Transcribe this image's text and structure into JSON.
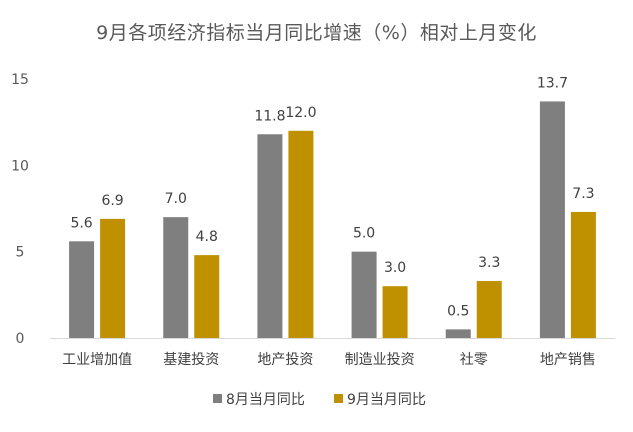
{
  "chart_data": {
    "type": "bar",
    "title": "9月各项经济指标当月同比增速（%）相对上月变化",
    "categories": [
      "工业增加值",
      "基建投资",
      "地产投资",
      "制造业投资",
      "社零",
      "地产销售"
    ],
    "series": [
      {
        "name": "8月当月同比",
        "color": "#7f7f7f",
        "values": [
          5.6,
          7.0,
          11.8,
          5.0,
          0.5,
          13.7
        ],
        "labels": [
          "5.6",
          "7.0",
          "11.8",
          "5.0",
          "0.5",
          "13.7"
        ]
      },
      {
        "name": "9月当月同比",
        "color": "#bf9000",
        "values": [
          6.9,
          4.8,
          12.0,
          3.0,
          3.3,
          7.3
        ],
        "labels": [
          "6.9",
          "4.8",
          "12.0",
          "3.0",
          "3.3",
          "7.3"
        ]
      }
    ],
    "ylim": [
      0,
      15
    ],
    "yticks": [
      "0",
      "5",
      "10",
      "15"
    ],
    "xlabel": "",
    "ylabel": "",
    "grid": false,
    "legend": "bottom"
  }
}
